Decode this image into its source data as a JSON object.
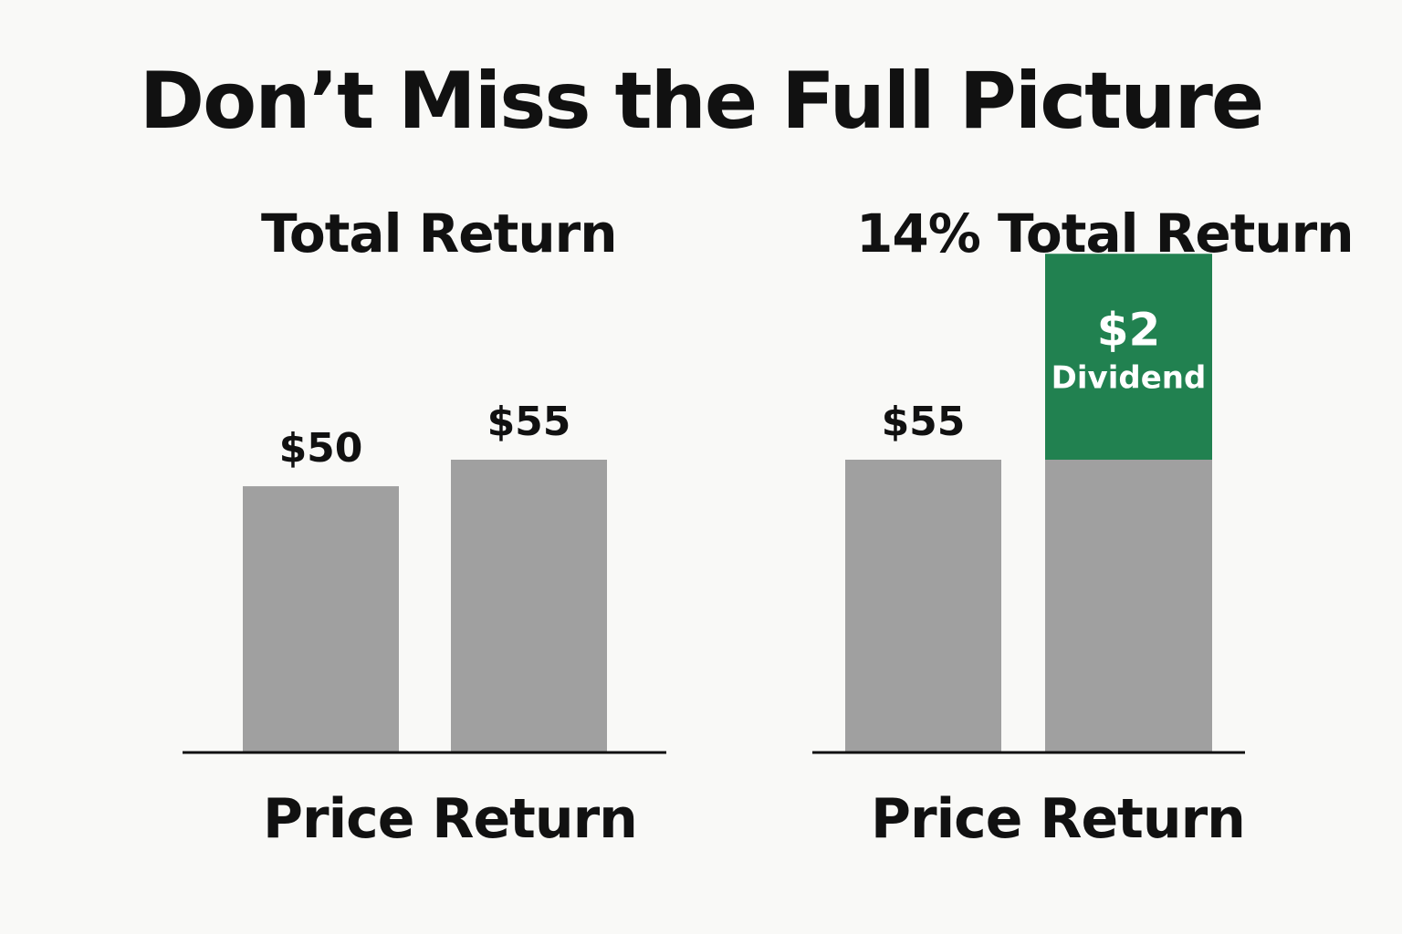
{
  "title": "Don’t Miss the Full Picture",
  "colors": {
    "background": "#f9f9f7",
    "price_bar": "#a0a0a0",
    "dividend": "#218150",
    "text": "#111111",
    "axis": "#111111"
  },
  "chart_data": [
    {
      "type": "bar",
      "title": "Total Return",
      "xlabel": "Price Return",
      "categories": [
        "",
        ""
      ],
      "values": [
        50,
        55
      ],
      "labels": [
        "$50",
        "$55"
      ],
      "ylim": [
        0,
        110
      ],
      "grid": false
    },
    {
      "type": "bar",
      "stacked": true,
      "title": "14% Total Return",
      "xlabel": "Price Return",
      "categories": [
        "",
        ""
      ],
      "series": [
        {
          "values": [
            55,
            55
          ],
          "labels": [
            "$55",
            ""
          ]
        },
        {
          "name": "Dividend",
          "values": [
            0,
            2
          ],
          "labels": [
            "",
            "$2"
          ]
        }
      ],
      "ylim": [
        0,
        110
      ],
      "grid": false
    }
  ]
}
